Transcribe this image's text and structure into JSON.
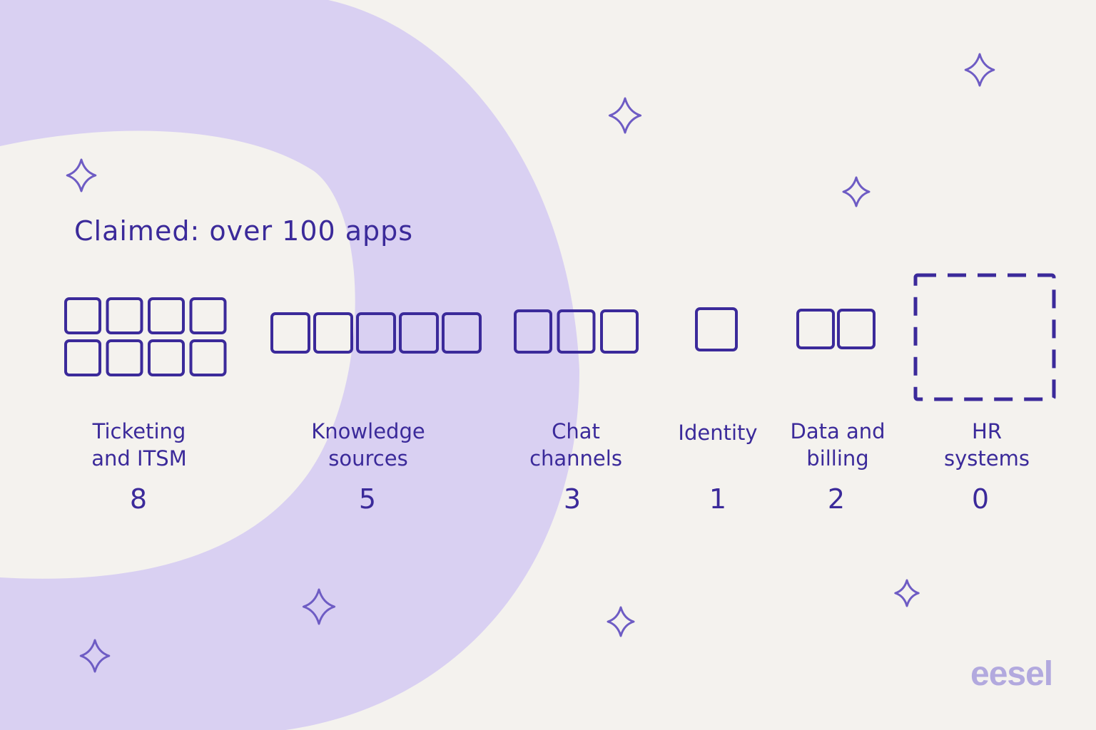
{
  "title": "Claimed: over 100 apps",
  "brand": "eesel",
  "colors": {
    "background": "#f4f2ee",
    "ring": "#d9d0f2",
    "ink": "#3b2a9a",
    "sparkle": "#6e5cc4",
    "brand": "#b2a9de"
  },
  "categories": [
    {
      "label": "Ticketing\nand ITSM",
      "count": "8"
    },
    {
      "label": "Knowledge\nsources",
      "count": "5"
    },
    {
      "label": "Chat\nchannels",
      "count": "3"
    },
    {
      "label": "Identity",
      "count": "1"
    },
    {
      "label": "Data and\nbilling",
      "count": "2"
    },
    {
      "label": "HR\nsystems",
      "count": "0"
    }
  ],
  "icons": [
    "app-box-icon",
    "empty-placeholder-icon",
    "sparkle-icon"
  ]
}
